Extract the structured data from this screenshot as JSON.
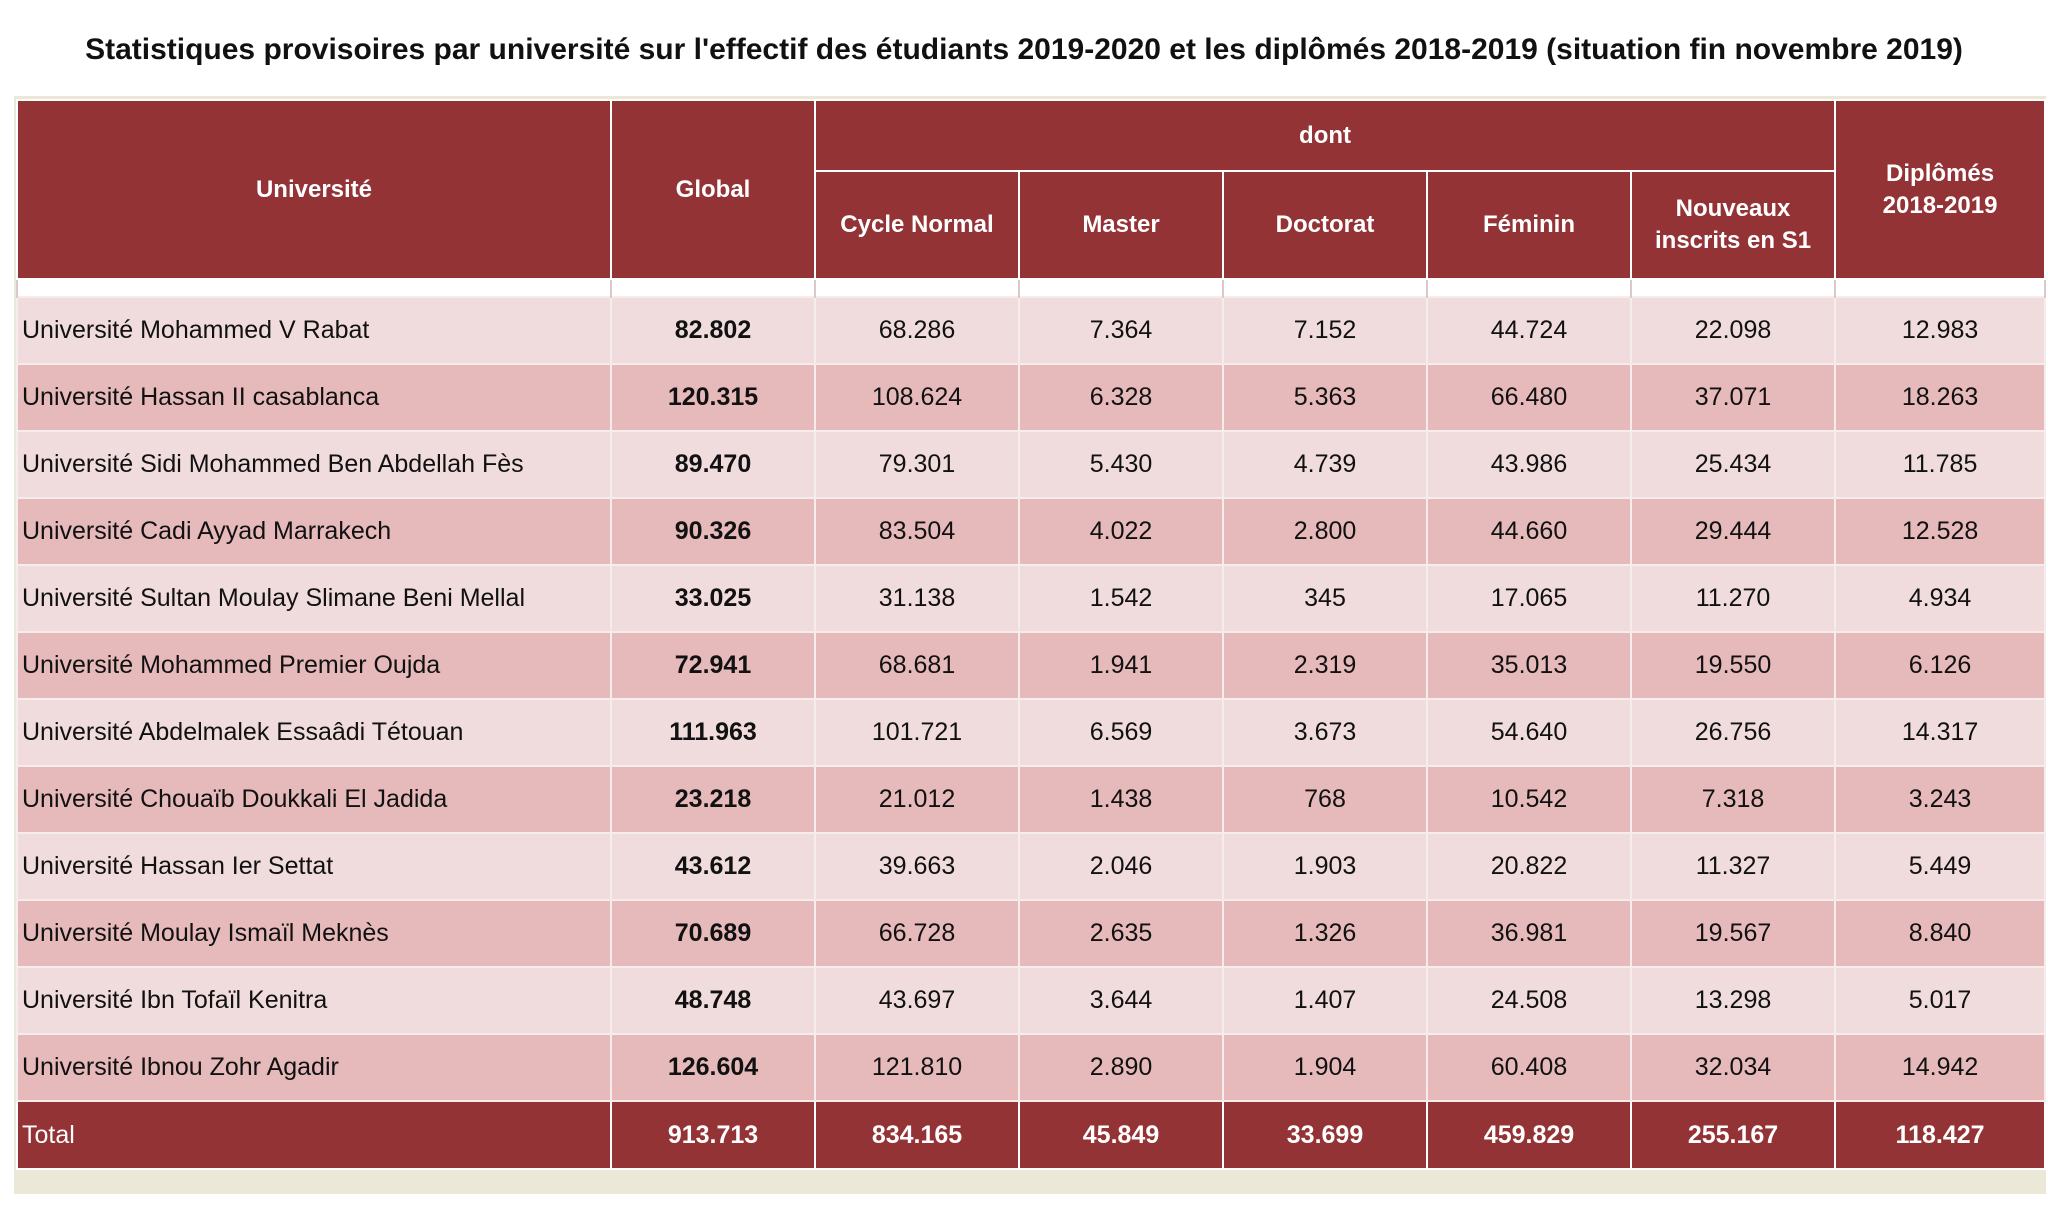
{
  "title": "Statistiques provisoires par université sur l'effectif des étudiants 2019-2020 et les diplômés 2018-2019 (situation fin novembre 2019)",
  "headers": {
    "university": "Université",
    "global": "Global",
    "dont": "dont",
    "cycle_normal": "Cycle Normal",
    "master": "Master",
    "doctorat": "Doctorat",
    "feminin": "Féminin",
    "nouveaux_line1": "Nouveaux",
    "nouveaux_line2": "inscrits en S1",
    "diplomes_line1": "Diplômés",
    "diplomes_line2": "2018-2019"
  },
  "rows": [
    {
      "university": "Université Mohammed V Rabat",
      "global": "82.802",
      "cycle_normal": "68.286",
      "master": "7.364",
      "doctorat": "7.152",
      "feminin": "44.724",
      "nouveaux": "22.098",
      "diplomes": "12.983"
    },
    {
      "university": "Université Hassan II casablanca",
      "global": "120.315",
      "cycle_normal": "108.624",
      "master": "6.328",
      "doctorat": "5.363",
      "feminin": "66.480",
      "nouveaux": "37.071",
      "diplomes": "18.263"
    },
    {
      "university": "Université Sidi Mohammed Ben Abdellah Fès",
      "global": "89.470",
      "cycle_normal": "79.301",
      "master": "5.430",
      "doctorat": "4.739",
      "feminin": "43.986",
      "nouveaux": "25.434",
      "diplomes": "11.785"
    },
    {
      "university": "Université Cadi Ayyad Marrakech",
      "global": "90.326",
      "cycle_normal": "83.504",
      "master": "4.022",
      "doctorat": "2.800",
      "feminin": "44.660",
      "nouveaux": "29.444",
      "diplomes": "12.528"
    },
    {
      "university": "Université Sultan Moulay Slimane Beni Mellal",
      "global": "33.025",
      "cycle_normal": "31.138",
      "master": "1.542",
      "doctorat": "345",
      "feminin": "17.065",
      "nouveaux": "11.270",
      "diplomes": "4.934"
    },
    {
      "university": "Université Mohammed Premier Oujda",
      "global": "72.941",
      "cycle_normal": "68.681",
      "master": "1.941",
      "doctorat": "2.319",
      "feminin": "35.013",
      "nouveaux": "19.550",
      "diplomes": "6.126"
    },
    {
      "university": "Université Abdelmalek Essaâdi Tétouan",
      "global": "111.963",
      "cycle_normal": "101.721",
      "master": "6.569",
      "doctorat": "3.673",
      "feminin": "54.640",
      "nouveaux": "26.756",
      "diplomes": "14.317"
    },
    {
      "university": "Université Chouaïb Doukkali El Jadida",
      "global": "23.218",
      "cycle_normal": "21.012",
      "master": "1.438",
      "doctorat": "768",
      "feminin": "10.542",
      "nouveaux": "7.318",
      "diplomes": "3.243"
    },
    {
      "university": "Université Hassan Ier Settat",
      "global": "43.612",
      "cycle_normal": "39.663",
      "master": "2.046",
      "doctorat": "1.903",
      "feminin": "20.822",
      "nouveaux": "11.327",
      "diplomes": "5.449"
    },
    {
      "university": "Université Moulay Ismaïl Meknès",
      "global": "70.689",
      "cycle_normal": "66.728",
      "master": "2.635",
      "doctorat": "1.326",
      "feminin": "36.981",
      "nouveaux": "19.567",
      "diplomes": "8.840"
    },
    {
      "university": "Université Ibn Tofaïl Kenitra",
      "global": "48.748",
      "cycle_normal": "43.697",
      "master": "3.644",
      "doctorat": "1.407",
      "feminin": "24.508",
      "nouveaux": "13.298",
      "diplomes": "5.017"
    },
    {
      "university": "Université Ibnou Zohr Agadir",
      "global": "126.604",
      "cycle_normal": "121.810",
      "master": "2.890",
      "doctorat": "1.904",
      "feminin": "60.408",
      "nouveaux": "32.034",
      "diplomes": "14.942"
    }
  ],
  "total": {
    "university": "Total",
    "global": "913.713",
    "cycle_normal": "834.165",
    "master": "45.849",
    "doctorat": "33.699",
    "feminin": "459.829",
    "nouveaux": "255.167",
    "diplomes": "118.427"
  },
  "colors": {
    "header_bg": "#943336",
    "row_light": "#f1dcdd",
    "row_dark": "#e6b9ba"
  }
}
